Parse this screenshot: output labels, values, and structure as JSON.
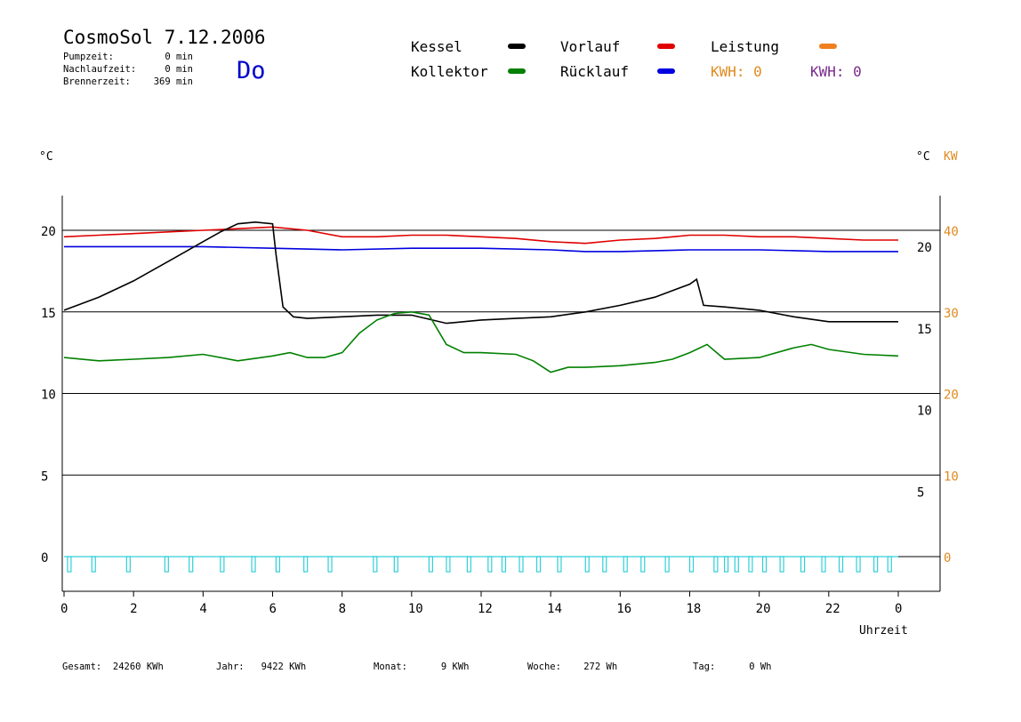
{
  "header": {
    "title": "CosmoSol 7.12.2006",
    "stats": [
      {
        "label": "Pumpzeit:",
        "value": "0 min"
      },
      {
        "label": "Nachlaufzeit:",
        "value": "0 min"
      },
      {
        "label": "Brennerzeit:",
        "value": "369 min"
      }
    ],
    "weekday": "Do"
  },
  "legend": {
    "kessel": {
      "label": "Kessel",
      "color": "#000000"
    },
    "kollektor": {
      "label": "Kollektor",
      "color": "#008000"
    },
    "vorlauf": {
      "label": "Vorlauf",
      "color": "#e00000"
    },
    "ruecklauf": {
      "label": "Rücklauf",
      "color": "#0000e0"
    },
    "leistung": {
      "label": "Leistung",
      "color": "#f08020"
    },
    "kwh1": "KWH: 0",
    "kwh2": "KWH: 0"
  },
  "axes": {
    "left_unit": "°C",
    "right_unit": "°C",
    "right_unit2": "KW",
    "xlabel": "Uhrzeit"
  },
  "footer": {
    "gesamt": "Gesamt:  24260 KWh",
    "jahr": "Jahr:   9422 KWh",
    "monat": "Monat:      9 KWh",
    "woche": "Woche:    272 Wh",
    "tag": "Tag:      0 Wh"
  },
  "chart_data": {
    "type": "line",
    "x_ticks": [
      "0",
      "2",
      "4",
      "6",
      "8",
      "10",
      "12",
      "14",
      "16",
      "18",
      "20",
      "22",
      "0"
    ],
    "y_ticks_left": [
      "0",
      "5",
      "10",
      "15",
      "20"
    ],
    "y_ticks_right": [
      "5",
      "10",
      "15",
      "20"
    ],
    "y_ticks_kw": [
      "0",
      "10",
      "20",
      "30",
      "40"
    ],
    "xlim": [
      0,
      24
    ],
    "ylim": [
      -1.5,
      22.5
    ],
    "series": [
      {
        "name": "Vorlauf",
        "color": "#e00000",
        "x": [
          0,
          1,
          2,
          3,
          4,
          5,
          6,
          7,
          8,
          9,
          10,
          11,
          12,
          13,
          14,
          15,
          16,
          17,
          18,
          19,
          20,
          21,
          22,
          23,
          24
        ],
        "y": [
          19.6,
          19.7,
          19.8,
          19.9,
          20.0,
          20.1,
          20.2,
          20.0,
          19.6,
          19.6,
          19.7,
          19.7,
          19.6,
          19.5,
          19.3,
          19.2,
          19.4,
          19.5,
          19.7,
          19.7,
          19.6,
          19.6,
          19.5,
          19.4,
          19.4
        ]
      },
      {
        "name": "Rücklauf",
        "color": "#0000e0",
        "x": [
          0,
          2,
          4,
          6,
          8,
          10,
          12,
          14,
          15,
          16,
          18,
          20,
          22,
          24
        ],
        "y": [
          19.0,
          19.0,
          19.0,
          18.9,
          18.8,
          18.9,
          18.9,
          18.8,
          18.7,
          18.7,
          18.8,
          18.8,
          18.7,
          18.7
        ]
      },
      {
        "name": "Kessel",
        "color": "#000000",
        "x": [
          0,
          0.5,
          1,
          1.5,
          2,
          2.5,
          3,
          3.5,
          4,
          4.5,
          5,
          5.5,
          6,
          6.1,
          6.3,
          6.6,
          7,
          8,
          9,
          10,
          11,
          12,
          13,
          14,
          15,
          16,
          17,
          17.5,
          18,
          18.2,
          18.4,
          19,
          20,
          21,
          22,
          23,
          24
        ],
        "y": [
          15.1,
          15.5,
          15.9,
          16.4,
          16.9,
          17.5,
          18.1,
          18.7,
          19.3,
          19.9,
          20.4,
          20.5,
          20.4,
          18.5,
          15.3,
          14.7,
          14.6,
          14.7,
          14.8,
          14.8,
          14.3,
          14.5,
          14.6,
          14.7,
          15.0,
          15.4,
          15.9,
          16.3,
          16.7,
          17.0,
          15.4,
          15.3,
          15.1,
          14.7,
          14.4,
          14.4,
          14.4
        ]
      },
      {
        "name": "Kollektor",
        "color": "#008000",
        "x": [
          0,
          1,
          2,
          3,
          4,
          5,
          6,
          6.5,
          7,
          7.5,
          8,
          8.5,
          9,
          9.5,
          10,
          10.5,
          11,
          11.5,
          12,
          13,
          13.5,
          14,
          14.5,
          15,
          16,
          17,
          17.5,
          18,
          18.5,
          19,
          20,
          21,
          21.5,
          22,
          23,
          24
        ],
        "y": [
          12.2,
          12.0,
          12.1,
          12.2,
          12.4,
          12.0,
          12.3,
          12.5,
          12.2,
          12.2,
          12.5,
          13.7,
          14.5,
          14.9,
          15.0,
          14.8,
          13.0,
          12.5,
          12.5,
          12.4,
          12.0,
          11.3,
          11.6,
          11.6,
          11.7,
          11.9,
          12.1,
          12.5,
          13.0,
          12.1,
          12.2,
          12.8,
          13.0,
          12.7,
          12.4,
          12.3
        ]
      }
    ],
    "pump_pulses_h": [
      0.1,
      0.8,
      1.8,
      2.9,
      3.6,
      4.5,
      5.4,
      6.1,
      6.9,
      7.6,
      8.9,
      9.5,
      10.5,
      11.0,
      11.6,
      12.2,
      12.6,
      13.1,
      13.6,
      14.2,
      15.0,
      15.5,
      16.1,
      16.6,
      17.3,
      18.0,
      18.7,
      19.0,
      19.3,
      19.7,
      20.1,
      20.6,
      21.2,
      21.8,
      22.3,
      22.8,
      23.3,
      23.7
    ],
    "grid": true
  }
}
